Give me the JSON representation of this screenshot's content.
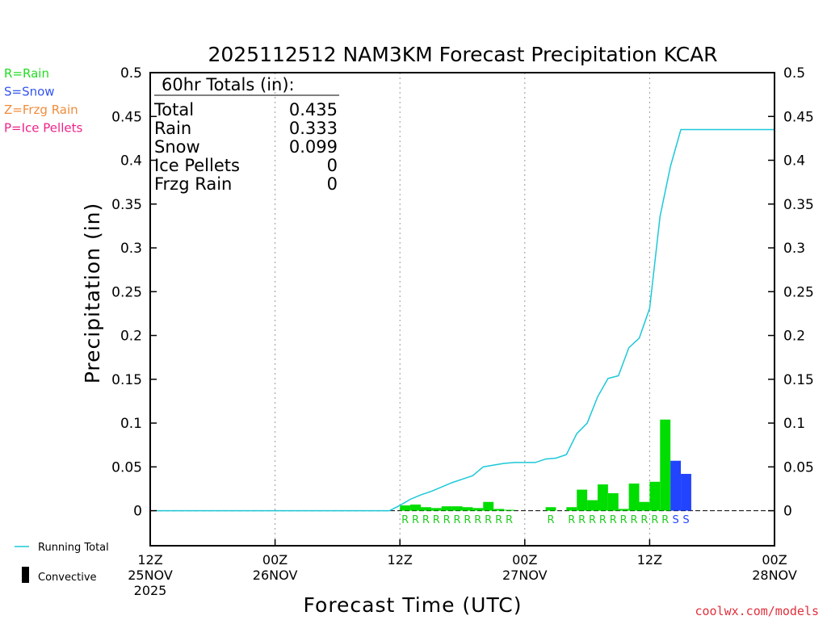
{
  "chart_data": {
    "type": "bar",
    "title": "2025112512 NAM3KM Forecast Precipitation KCAR",
    "xlabel": "Forecast Time (UTC)",
    "ylabel": "Precipitation (in)",
    "ylim": [
      -0.04,
      0.5
    ],
    "y_ticks": [
      0,
      0.05,
      0.1,
      0.15,
      0.2,
      0.25,
      0.3,
      0.35,
      0.4,
      0.45,
      0.5
    ],
    "y_tick_labels": [
      "0",
      "0.05",
      "0.1",
      "0.15",
      "0.2",
      "0.25",
      "0.3",
      "0.35",
      "0.4",
      "0.45",
      "0.5"
    ],
    "x_range_hours": [
      0,
      60
    ],
    "x_ticks": [
      {
        "hour": 0,
        "lines": [
          "12Z",
          "25NOV",
          "2025"
        ]
      },
      {
        "hour": 12,
        "lines": [
          "00Z",
          "26NOV"
        ]
      },
      {
        "hour": 24,
        "lines": [
          "12Z"
        ]
      },
      {
        "hour": 36,
        "lines": [
          "00Z",
          "27NOV"
        ]
      },
      {
        "hour": 48,
        "lines": [
          "12Z"
        ]
      },
      {
        "hour": 60,
        "lines": [
          "00Z",
          "28NOV"
        ]
      }
    ],
    "gridlines_at_hours": [
      12,
      24,
      36,
      48
    ],
    "bars": [
      {
        "hour": 24,
        "value": 0.006,
        "type": "R"
      },
      {
        "hour": 25,
        "value": 0.007,
        "type": "R"
      },
      {
        "hour": 26,
        "value": 0.004,
        "type": "R"
      },
      {
        "hour": 27,
        "value": 0.003,
        "type": "R"
      },
      {
        "hour": 28,
        "value": 0.005,
        "type": "R"
      },
      {
        "hour": 29,
        "value": 0.005,
        "type": "R"
      },
      {
        "hour": 30,
        "value": 0.004,
        "type": "R"
      },
      {
        "hour": 31,
        "value": 0.003,
        "type": "R"
      },
      {
        "hour": 32,
        "value": 0.01,
        "type": "R"
      },
      {
        "hour": 33,
        "value": 0.002,
        "type": "R"
      },
      {
        "hour": 34,
        "value": 0.001,
        "type": "R"
      },
      {
        "hour": 38,
        "value": 0.004,
        "type": "R"
      },
      {
        "hour": 40,
        "value": 0.004,
        "type": "R"
      },
      {
        "hour": 41,
        "value": 0.024,
        "type": "R"
      },
      {
        "hour": 42,
        "value": 0.012,
        "type": "R"
      },
      {
        "hour": 43,
        "value": 0.03,
        "type": "R"
      },
      {
        "hour": 44,
        "value": 0.02,
        "type": "R"
      },
      {
        "hour": 45,
        "value": 0.002,
        "type": "R"
      },
      {
        "hour": 46,
        "value": 0.031,
        "type": "R"
      },
      {
        "hour": 47,
        "value": 0.01,
        "type": "R"
      },
      {
        "hour": 48,
        "value": 0.033,
        "type": "R"
      },
      {
        "hour": 49,
        "value": 0.104,
        "type": "R"
      },
      {
        "hour": 50,
        "value": 0.057,
        "type": "S"
      },
      {
        "hour": 51,
        "value": 0.042,
        "type": "S"
      }
    ],
    "running_total": {
      "name": "Running Total",
      "points": [
        [
          0.5,
          0
        ],
        [
          23,
          0
        ],
        [
          24,
          0.006
        ],
        [
          25,
          0.013
        ],
        [
          26,
          0.018
        ],
        [
          27,
          0.022
        ],
        [
          28,
          0.027
        ],
        [
          29,
          0.032
        ],
        [
          30,
          0.036
        ],
        [
          31,
          0.04
        ],
        [
          32,
          0.05
        ],
        [
          33,
          0.052
        ],
        [
          34,
          0.054
        ],
        [
          35,
          0.055
        ],
        [
          36,
          0.055
        ],
        [
          37,
          0.055
        ],
        [
          38,
          0.059
        ],
        [
          39,
          0.06
        ],
        [
          40,
          0.064
        ],
        [
          41,
          0.088
        ],
        [
          42,
          0.1
        ],
        [
          43,
          0.13
        ],
        [
          44,
          0.151
        ],
        [
          45,
          0.154
        ],
        [
          46,
          0.186
        ],
        [
          47,
          0.197
        ],
        [
          48,
          0.231
        ],
        [
          49,
          0.336
        ],
        [
          50,
          0.393
        ],
        [
          51,
          0.435
        ],
        [
          60,
          0.435
        ]
      ]
    },
    "totals_box": {
      "title": "60hr Totals (in):",
      "rows": [
        {
          "label": "Total",
          "value": "0.435"
        },
        {
          "label": "Rain",
          "value": "0.333"
        },
        {
          "label": "Snow",
          "value": "0.099"
        },
        {
          "label": "Ice Pellets",
          "value": "0"
        },
        {
          "label": "Frzg Rain",
          "value": "0"
        }
      ]
    },
    "ptype_legend": [
      {
        "text": "R=Rain",
        "color": "#22dd22"
      },
      {
        "text": "S=Snow",
        "color": "#3355ee"
      },
      {
        "text": "Z=Frzg Rain",
        "color": "#f08c3c"
      },
      {
        "text": "P=Ice Pellets",
        "color": "#ee2288"
      }
    ],
    "bottom_legend": {
      "running_total_label": "Running Total",
      "convective_label": "Convective"
    },
    "colors": {
      "rain": "#00dd00",
      "snow": "#2244ff",
      "running_total": "#1cc8d8",
      "credit": "#e0303c"
    },
    "credit": "coolwx.com/models"
  }
}
